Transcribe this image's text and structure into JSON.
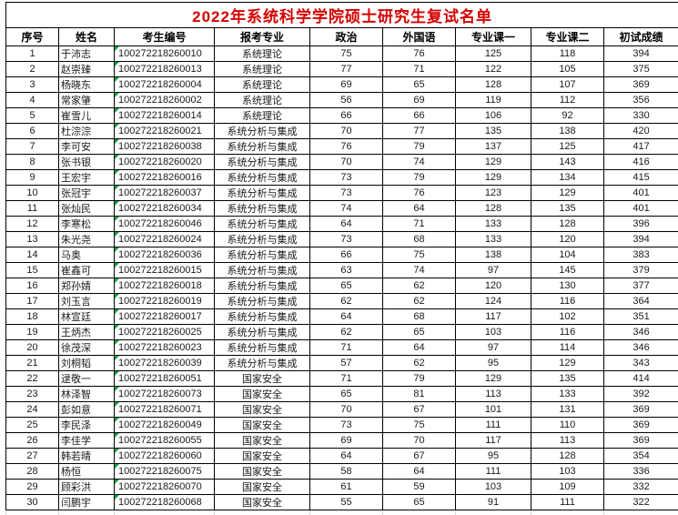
{
  "title": "2022年系统科学学院硕士研究生复试名单",
  "colors": {
    "title_text": "#d40000",
    "grid_line": "#000000",
    "indicator_triangle": "#00a73c"
  },
  "table": {
    "columns": [
      "序号",
      "姓名",
      "考生编号",
      "报考专业",
      "政治",
      "外国语",
      "专业课一",
      "专业课二",
      "初试成绩"
    ],
    "rows": [
      [
        "1",
        "于沛志",
        "100272218260010",
        "系统理论",
        "75",
        "76",
        "125",
        "118",
        "394"
      ],
      [
        "2",
        "赵崇臻",
        "100272218260013",
        "系统理论",
        "77",
        "71",
        "122",
        "105",
        "375"
      ],
      [
        "3",
        "杨晓东",
        "100272218260004",
        "系统理论",
        "69",
        "65",
        "128",
        "107",
        "369"
      ],
      [
        "4",
        "常家肇",
        "100272218260002",
        "系统理论",
        "56",
        "69",
        "119",
        "112",
        "356"
      ],
      [
        "5",
        "崔雪儿",
        "100272218260014",
        "系统理论",
        "66",
        "66",
        "106",
        "92",
        "330"
      ],
      [
        "6",
        "杜淙淙",
        "100272218260021",
        "系统分析与集成",
        "70",
        "77",
        "135",
        "138",
        "420"
      ],
      [
        "7",
        "李可安",
        "100272218260038",
        "系统分析与集成",
        "76",
        "79",
        "137",
        "125",
        "417"
      ],
      [
        "8",
        "张书银",
        "100272218260020",
        "系统分析与集成",
        "70",
        "74",
        "129",
        "143",
        "416"
      ],
      [
        "9",
        "王宏宇",
        "100272218260016",
        "系统分析与集成",
        "73",
        "79",
        "129",
        "134",
        "415"
      ],
      [
        "10",
        "张冠宇",
        "100272218260037",
        "系统分析与集成",
        "73",
        "76",
        "123",
        "129",
        "401"
      ],
      [
        "11",
        "张灿民",
        "100272218260034",
        "系统分析与集成",
        "74",
        "64",
        "128",
        "135",
        "401"
      ],
      [
        "12",
        "李寒松",
        "100272218260046",
        "系统分析与集成",
        "64",
        "71",
        "133",
        "128",
        "396"
      ],
      [
        "13",
        "朱光尧",
        "100272218260024",
        "系统分析与集成",
        "73",
        "68",
        "133",
        "120",
        "394"
      ],
      [
        "14",
        "马奥",
        "100272218260036",
        "系统分析与集成",
        "66",
        "75",
        "138",
        "104",
        "383"
      ],
      [
        "15",
        "崔鑫可",
        "100272218260015",
        "系统分析与集成",
        "63",
        "74",
        "97",
        "145",
        "379"
      ],
      [
        "16",
        "郑孙婧",
        "100272218260018",
        "系统分析与集成",
        "65",
        "62",
        "120",
        "130",
        "377"
      ],
      [
        "17",
        "刘玉言",
        "100272218260019",
        "系统分析与集成",
        "62",
        "62",
        "124",
        "116",
        "364"
      ],
      [
        "18",
        "林宣廷",
        "100272218260017",
        "系统分析与集成",
        "64",
        "68",
        "117",
        "102",
        "351"
      ],
      [
        "19",
        "王炳杰",
        "100272218260025",
        "系统分析与集成",
        "62",
        "65",
        "103",
        "116",
        "346"
      ],
      [
        "20",
        "徐茂深",
        "100272218260023",
        "系统分析与集成",
        "71",
        "64",
        "97",
        "114",
        "346"
      ],
      [
        "21",
        "刘桐韬",
        "100272218260039",
        "系统分析与集成",
        "57",
        "62",
        "95",
        "129",
        "343"
      ],
      [
        "22",
        "逯敬一",
        "100272218260051",
        "国家安全",
        "71",
        "79",
        "129",
        "135",
        "414"
      ],
      [
        "23",
        "林泽智",
        "100272218260073",
        "国家安全",
        "65",
        "81",
        "113",
        "133",
        "392"
      ],
      [
        "24",
        "彭如意",
        "100272218260071",
        "国家安全",
        "70",
        "67",
        "101",
        "131",
        "369"
      ],
      [
        "25",
        "李民泽",
        "100272218260049",
        "国家安全",
        "73",
        "75",
        "111",
        "110",
        "369"
      ],
      [
        "26",
        "李佳学",
        "100272218260055",
        "国家安全",
        "69",
        "70",
        "117",
        "113",
        "369"
      ],
      [
        "27",
        "韩若晴",
        "100272218260060",
        "国家安全",
        "64",
        "67",
        "95",
        "128",
        "354"
      ],
      [
        "28",
        "杨恒",
        "100272218260075",
        "国家安全",
        "58",
        "64",
        "111",
        "103",
        "336"
      ],
      [
        "29",
        "顾彩洪",
        "100272218260070",
        "国家安全",
        "61",
        "59",
        "103",
        "109",
        "332"
      ],
      [
        "30",
        "闫鹏宇",
        "100272218260068",
        "国家安全",
        "55",
        "65",
        "91",
        "111",
        "322"
      ]
    ]
  }
}
